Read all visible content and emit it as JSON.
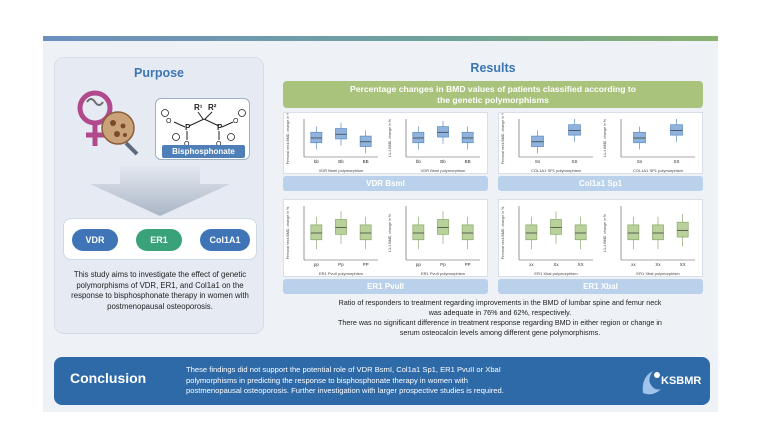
{
  "purpose": {
    "title": "Purpose",
    "bisphosphonate_label": "Bisphosphonate",
    "genes": [
      "VDR",
      "ER1",
      "Col1A1"
    ],
    "description": "This study aims to investigate the effect of genetic polymorphisms of VDR, ER1, and Col1a1 on the response to bisphosphonate therapy in women with postmenopausal osteoporosis."
  },
  "results": {
    "title": "Results",
    "banner_line1": "Percentage changes in BMD values of patients classified according to",
    "banner_line2": "the genetic polymorphisms",
    "panels": [
      {
        "label": "VDR BsmI"
      },
      {
        "label": "Col1a1 Sp1"
      },
      {
        "label": "ER1 PvuII"
      },
      {
        "label": "ER1 XbaI"
      }
    ],
    "text_line1": "Ratio of responders to treatment regarding improvements in the BMD of lumbar spine and femur neck",
    "text_line2": "was adequate in 76% and 62%, respectively.",
    "text_line3": "There was no significant difference in treatment response regarding BMD in either region or change in",
    "text_line4": "serum osteocalcin levels among different gene polymorphisms."
  },
  "chart_data": [
    {
      "type": "box",
      "title": "VDR BsmI femoral neck",
      "xlabel": "VDR BsmI polymorphism",
      "ylabel": "Femoral neck BMD, change in %",
      "categories": [
        "bb",
        "Bb",
        "BB"
      ],
      "medians": [
        0,
        2,
        -2
      ]
    },
    {
      "type": "box",
      "title": "VDR BsmI L1-4",
      "xlabel": "VDR BsmI polymorphism",
      "ylabel": "L1-4 BMD, change in %",
      "categories": [
        "bb",
        "Bb",
        "BB"
      ],
      "medians": [
        0,
        3,
        0
      ]
    },
    {
      "type": "box",
      "title": "Col1a1 Sp1 femoral neck",
      "xlabel": "COL1A1 SP1 polymorphism",
      "ylabel": "Femoral neck BMD, change in %",
      "categories": [
        "Ss",
        "SS"
      ],
      "medians": [
        -2,
        4
      ]
    },
    {
      "type": "box",
      "title": "Col1a1 Sp1 L1-4",
      "xlabel": "COL1A1 SP1 polymorphism",
      "ylabel": "L1-4 BMD, change in %",
      "categories": [
        "Ss",
        "SS"
      ],
      "medians": [
        0,
        4
      ]
    },
    {
      "type": "box",
      "title": "ER1 PvuII femoral neck",
      "xlabel": "ER1 PvuII polymorphism",
      "ylabel": "Femoral neck BMD, change in %",
      "categories": [
        "pp",
        "Pp",
        "PP"
      ],
      "medians": [
        0,
        2,
        0
      ]
    },
    {
      "type": "box",
      "title": "ER1 PvuII L1-4",
      "xlabel": "ER1 PvuII polymorphism",
      "ylabel": "L1-4 BMD, change in %",
      "categories": [
        "pp",
        "Pp",
        "PP"
      ],
      "medians": [
        0,
        2,
        0
      ]
    },
    {
      "type": "box",
      "title": "ER1 XbaI femoral neck",
      "xlabel": "ER1 XbaI polymorphism",
      "ylabel": "Femoral neck BMD, change in %",
      "categories": [
        "xx",
        "Xx",
        "XX"
      ],
      "medians": [
        0,
        2,
        0
      ]
    },
    {
      "type": "box",
      "title": "ER1 XbaI L1-4",
      "xlabel": "ER1 XbaI polymorphism",
      "ylabel": "L1-4 BMD, change in %",
      "categories": [
        "xx",
        "Xx",
        "XX"
      ],
      "medians": [
        0,
        0,
        1
      ]
    }
  ],
  "conclusion": {
    "title": "Conclusion",
    "line1": "These findings did not support the potential role of VDR BsmI, Col1a1 Sp1, ER1 PvuII or XbaI",
    "line2": "polymorphisms in predicting the response to bisphosphonate therapy in women with",
    "line3": "postmenopausal osteoporosis.  Further investigation with larger prospective studies is required.",
    "logo_text": "KSBMR"
  },
  "colors": {
    "title_blue": "#3c76b4",
    "banner_green": "#a9c27c",
    "conclusion_blue": "#2f6aa8",
    "box_blue": "#8fb3dc",
    "box_green": "#b9d19a"
  }
}
